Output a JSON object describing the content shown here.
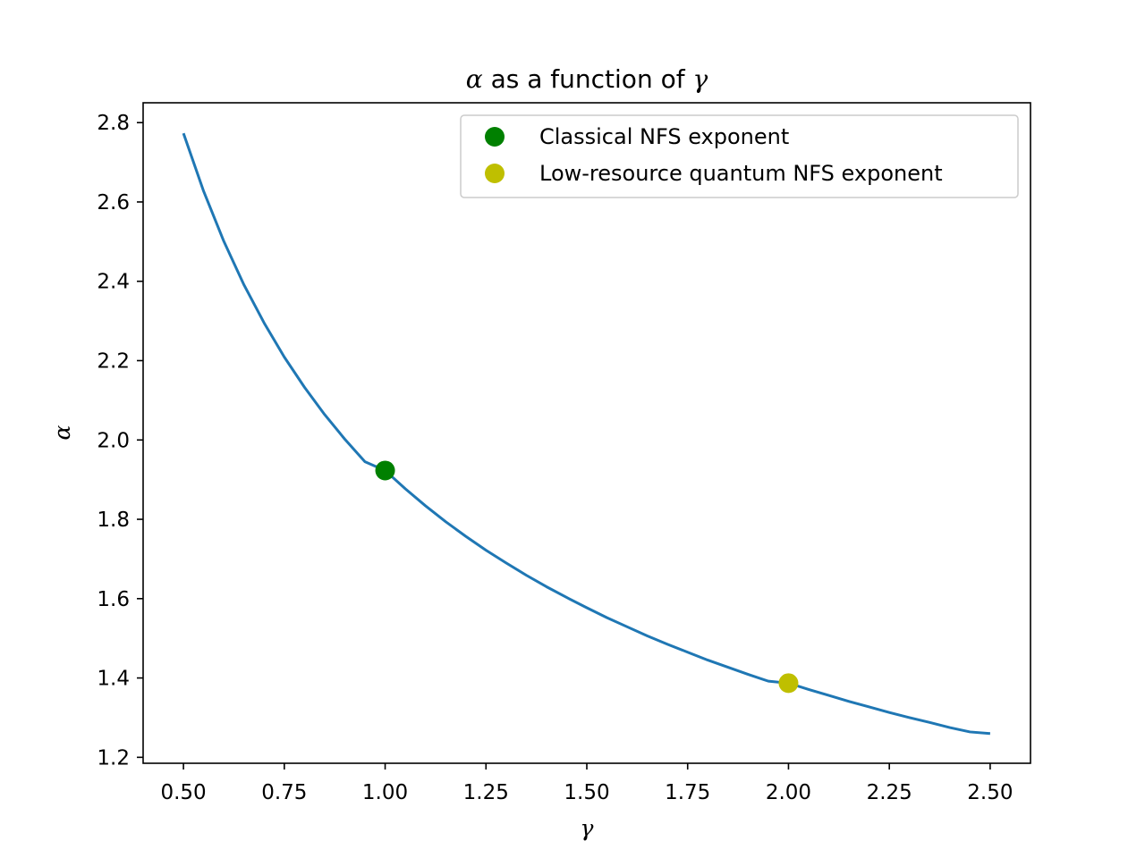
{
  "chart_data": {
    "type": "line",
    "title_symbol": "α",
    "title_middle": " as a function of ",
    "title_symbol2": "γ",
    "xlabel": "γ",
    "ylabel": "α",
    "xlim": [
      0.4,
      2.6
    ],
    "ylim": [
      1.185,
      2.85
    ],
    "xticks": [
      "0.50",
      "0.75",
      "1.00",
      "1.25",
      "1.50",
      "1.75",
      "2.00",
      "2.25",
      "2.50"
    ],
    "yticks": [
      "1.2",
      "1.4",
      "1.6",
      "1.8",
      "2.0",
      "2.2",
      "2.4",
      "2.6",
      "2.8"
    ],
    "grid": false,
    "legend_position": "upper right",
    "line_color": "#1f77b4",
    "series": [
      {
        "x": [
          0.5,
          0.55,
          0.6,
          0.65,
          0.7,
          0.75,
          0.8,
          0.85,
          0.9,
          0.95,
          1.0,
          1.05,
          1.1,
          1.15,
          1.2,
          1.25,
          1.3,
          1.35,
          1.4,
          1.45,
          1.5,
          1.55,
          1.6,
          1.65,
          1.7,
          1.75,
          1.8,
          1.85,
          1.9,
          1.95,
          2.0,
          2.05,
          2.1,
          2.15,
          2.2,
          2.25,
          2.3,
          2.35,
          2.4,
          2.45,
          2.5
        ],
        "y": [
          2.773,
          2.627,
          2.501,
          2.391,
          2.295,
          2.209,
          2.133,
          2.064,
          2.002,
          1.945,
          1.923,
          1.877,
          1.834,
          1.794,
          1.757,
          1.722,
          1.69,
          1.659,
          1.63,
          1.603,
          1.577,
          1.552,
          1.529,
          1.506,
          1.485,
          1.465,
          1.445,
          1.427,
          1.409,
          1.392,
          1.387,
          1.371,
          1.356,
          1.341,
          1.327,
          1.313,
          1.3,
          1.288,
          1.275,
          1.264,
          1.26
        ]
      }
    ],
    "points": [
      {
        "name": "Classical NFS exponent",
        "x": 1.0,
        "y": 1.923,
        "color": "#008000"
      },
      {
        "name": "Low-resource quantum NFS exponent",
        "x": 2.0,
        "y": 1.387,
        "color": "#bfbf00"
      }
    ]
  }
}
